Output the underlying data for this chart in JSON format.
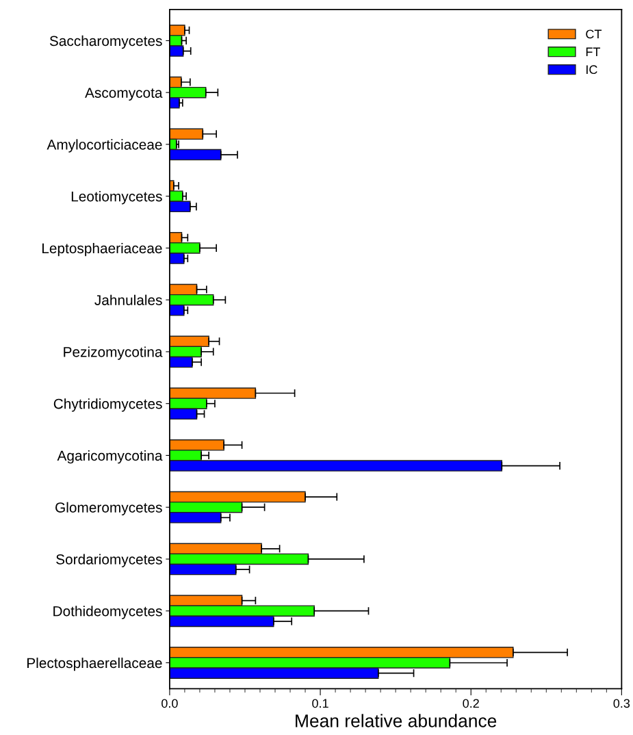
{
  "chart_data": {
    "type": "bar",
    "orientation": "horizontal",
    "xlabel": "Mean relative abundance",
    "categories": [
      "Saccharomycetes",
      "Ascomycota",
      "Amylocorticiaceae",
      "Leotiomycetes",
      "Leptosphaeriaceae",
      "Jahnulales",
      "Pezizomycotina",
      "Chytridiomycetes",
      "Agaricomycotina",
      "Glomeromycetes",
      "Sordariomycetes",
      "Dothideomycetes",
      "Plectosphaerellaceae"
    ],
    "series": [
      {
        "name": "CT",
        "color": "#ff7f00",
        "values": [
          0.01,
          0.0077,
          0.022,
          0.0027,
          0.008,
          0.018,
          0.026,
          0.057,
          0.036,
          0.09,
          0.061,
          0.048,
          0.228
        ],
        "errors": [
          [
            0.01,
            0.013
          ],
          [
            0.0077,
            0.0136
          ],
          [
            0.022,
            0.031
          ],
          [
            0.0027,
            0.006
          ],
          [
            0.008,
            0.012
          ],
          [
            0.018,
            0.0245
          ],
          [
            0.026,
            0.033
          ],
          [
            0.057,
            0.083
          ],
          [
            0.036,
            0.048
          ],
          [
            0.09,
            0.111
          ],
          [
            0.061,
            0.073
          ],
          [
            0.048,
            0.057
          ],
          [
            0.228,
            0.264
          ]
        ]
      },
      {
        "name": "FT",
        "color": "#1eff00",
        "values": [
          0.008,
          0.024,
          0.0045,
          0.0086,
          0.02,
          0.029,
          0.021,
          0.0245,
          0.021,
          0.048,
          0.092,
          0.096,
          0.186
        ],
        "errors": [
          [
            0.008,
            0.011
          ],
          [
            0.024,
            0.032
          ],
          [
            0.0045,
            0.006
          ],
          [
            0.0086,
            0.011
          ],
          [
            0.02,
            0.031
          ],
          [
            0.029,
            0.037
          ],
          [
            0.021,
            0.029
          ],
          [
            0.0245,
            0.03
          ],
          [
            0.021,
            0.026
          ],
          [
            0.048,
            0.063
          ],
          [
            0.092,
            0.129
          ],
          [
            0.096,
            0.132
          ],
          [
            0.186,
            0.224
          ]
        ]
      },
      {
        "name": "IC",
        "color": "#0000ff",
        "values": [
          0.009,
          0.0064,
          0.034,
          0.0136,
          0.0095,
          0.0095,
          0.015,
          0.018,
          0.2205,
          0.034,
          0.044,
          0.069,
          0.1385
        ],
        "errors": [
          [
            0.009,
            0.014
          ],
          [
            0.0064,
            0.0086
          ],
          [
            0.034,
            0.045
          ],
          [
            0.0136,
            0.0177
          ],
          [
            0.0095,
            0.012
          ],
          [
            0.0095,
            0.012
          ],
          [
            0.015,
            0.021
          ],
          [
            0.018,
            0.023
          ],
          [
            0.2205,
            0.259
          ],
          [
            0.034,
            0.04
          ],
          [
            0.044,
            0.053
          ],
          [
            0.069,
            0.081
          ],
          [
            0.1385,
            0.162
          ]
        ]
      }
    ],
    "xlim": [
      0,
      0.3
    ],
    "xticks": [
      {
        "value": 0,
        "label": "0.0"
      },
      {
        "value": 0.01,
        "label": null
      },
      {
        "value": 0.02,
        "label": null
      },
      {
        "value": 0.03,
        "label": null
      },
      {
        "value": 0.04,
        "label": null
      },
      {
        "value": 0.05,
        "label": null
      },
      {
        "value": 0.06,
        "label": null
      },
      {
        "value": 0.07,
        "label": null
      },
      {
        "value": 0.08,
        "label": null
      },
      {
        "value": 0.09,
        "label": null
      },
      {
        "value": 0.1,
        "label": "0.1"
      },
      {
        "value": 0.11,
        "label": null
      },
      {
        "value": 0.12,
        "label": null
      },
      {
        "value": 0.13,
        "label": null
      },
      {
        "value": 0.14,
        "label": null
      },
      {
        "value": 0.15,
        "label": null
      },
      {
        "value": 0.16,
        "label": null
      },
      {
        "value": 0.17,
        "label": null
      },
      {
        "value": 0.18,
        "label": null
      },
      {
        "value": 0.19,
        "label": null
      },
      {
        "value": 0.2,
        "label": "0.2"
      },
      {
        "value": 0.21,
        "label": null
      },
      {
        "value": 0.22,
        "label": null
      },
      {
        "value": 0.23,
        "label": null
      },
      {
        "value": 0.24,
        "label": null
      },
      {
        "value": 0.25,
        "label": null
      },
      {
        "value": 0.26,
        "label": null
      },
      {
        "value": 0.27,
        "label": null
      },
      {
        "value": 0.28,
        "label": null
      },
      {
        "value": 0.29,
        "label": null
      },
      {
        "value": 0.3,
        "label": "0.3"
      }
    ],
    "grid": false,
    "legend": "top right"
  }
}
